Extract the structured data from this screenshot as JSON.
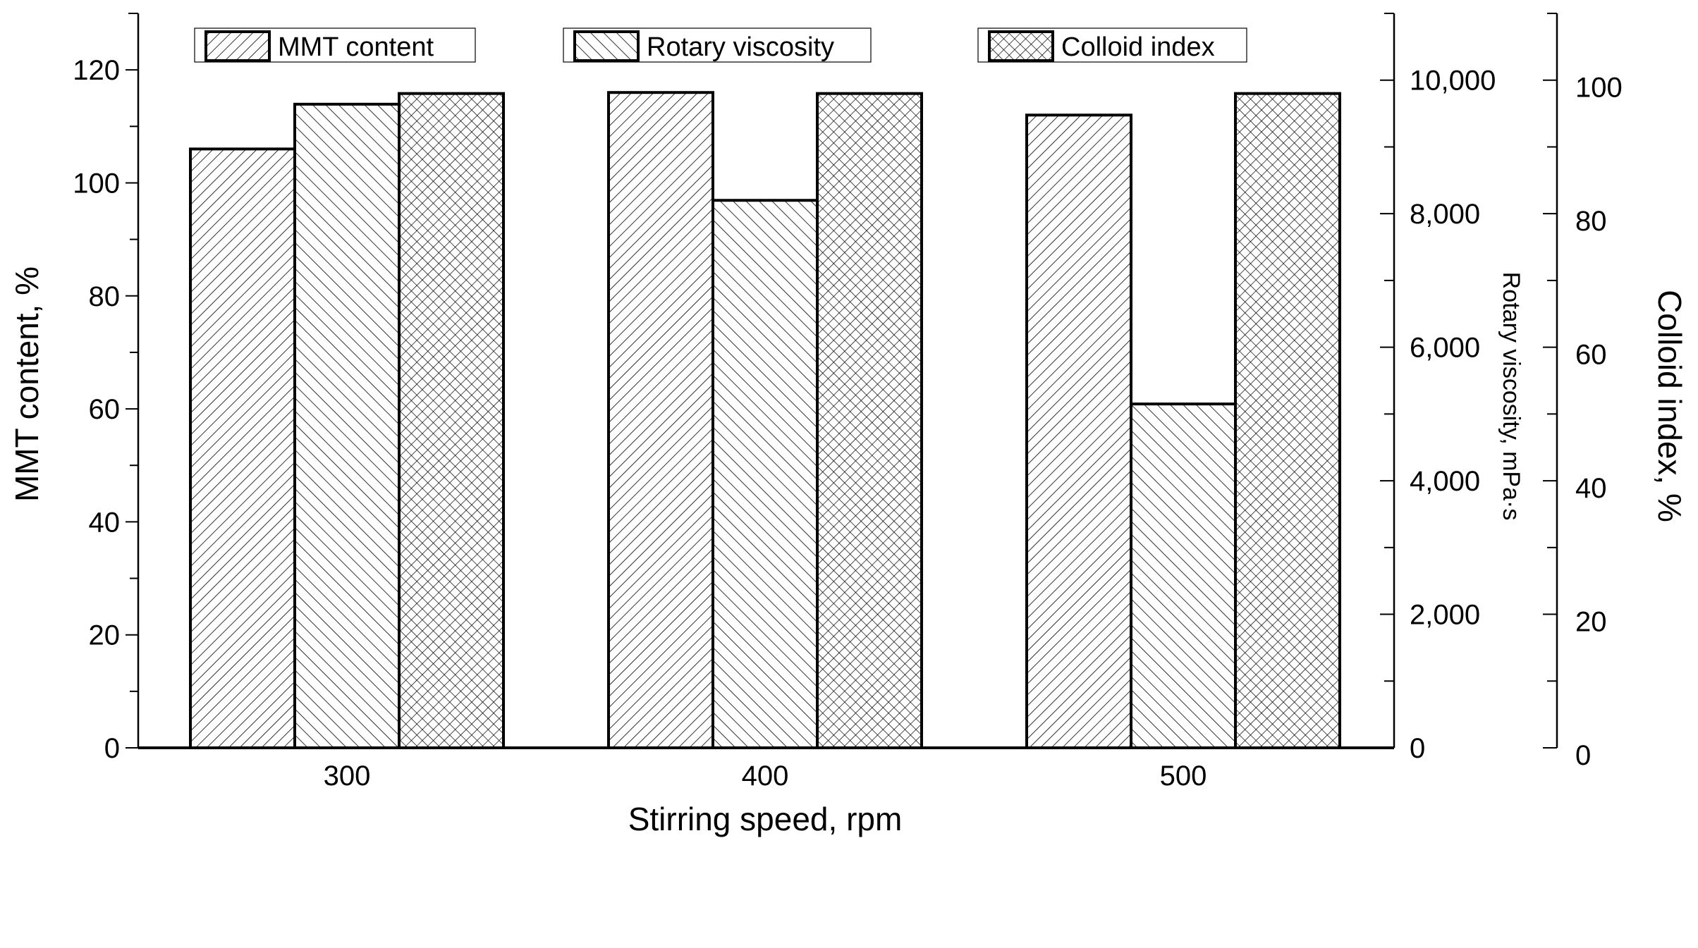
{
  "chart_data": {
    "type": "bar",
    "xlabel": "Stirring speed, rpm",
    "categories": [
      "300",
      "400",
      "500"
    ],
    "series": [
      {
        "name": "MMT content",
        "axis": "left",
        "pattern": "forward-diagonal-hatch",
        "values": [
          106,
          116,
          112
        ]
      },
      {
        "name": "Rotary viscosity",
        "axis": "right-inner",
        "pattern": "backward-diagonal-hatch",
        "values": [
          9640,
          8200,
          5150
        ]
      },
      {
        "name": "Colloid index",
        "axis": "right-outer",
        "pattern": "cross-hatch",
        "values": [
          98,
          98,
          98
        ]
      }
    ],
    "axes": {
      "left": {
        "label": "MMT content, %",
        "ylim": [
          0,
          130
        ],
        "ticks": [
          "0",
          "20",
          "40",
          "60",
          "80",
          "100",
          "120"
        ],
        "tick_values": [
          0,
          20,
          40,
          60,
          80,
          100,
          120
        ]
      },
      "right_inner": {
        "label": "Rotary viscosity, mPa·s",
        "ylim": [
          0,
          11000
        ],
        "ticks": [
          "0",
          "2,000",
          "4,000",
          "6,000",
          "8,000",
          "10,000"
        ],
        "tick_values": [
          0,
          2000,
          4000,
          6000,
          8000,
          10000
        ]
      },
      "right_outer": {
        "label": "Colloid index, %",
        "ylim": [
          0,
          110
        ],
        "ticks": [
          "0",
          "20",
          "40",
          "60",
          "80",
          "100"
        ],
        "tick_values": [
          0,
          20,
          40,
          60,
          80,
          100
        ]
      }
    },
    "legend": {
      "placement": "top",
      "entries": [
        "MMT content",
        "Rotary viscosity",
        "Colloid index"
      ]
    },
    "grid": false,
    "colors": {
      "bar_fill": "#ffffff",
      "stroke": "#000000"
    }
  }
}
